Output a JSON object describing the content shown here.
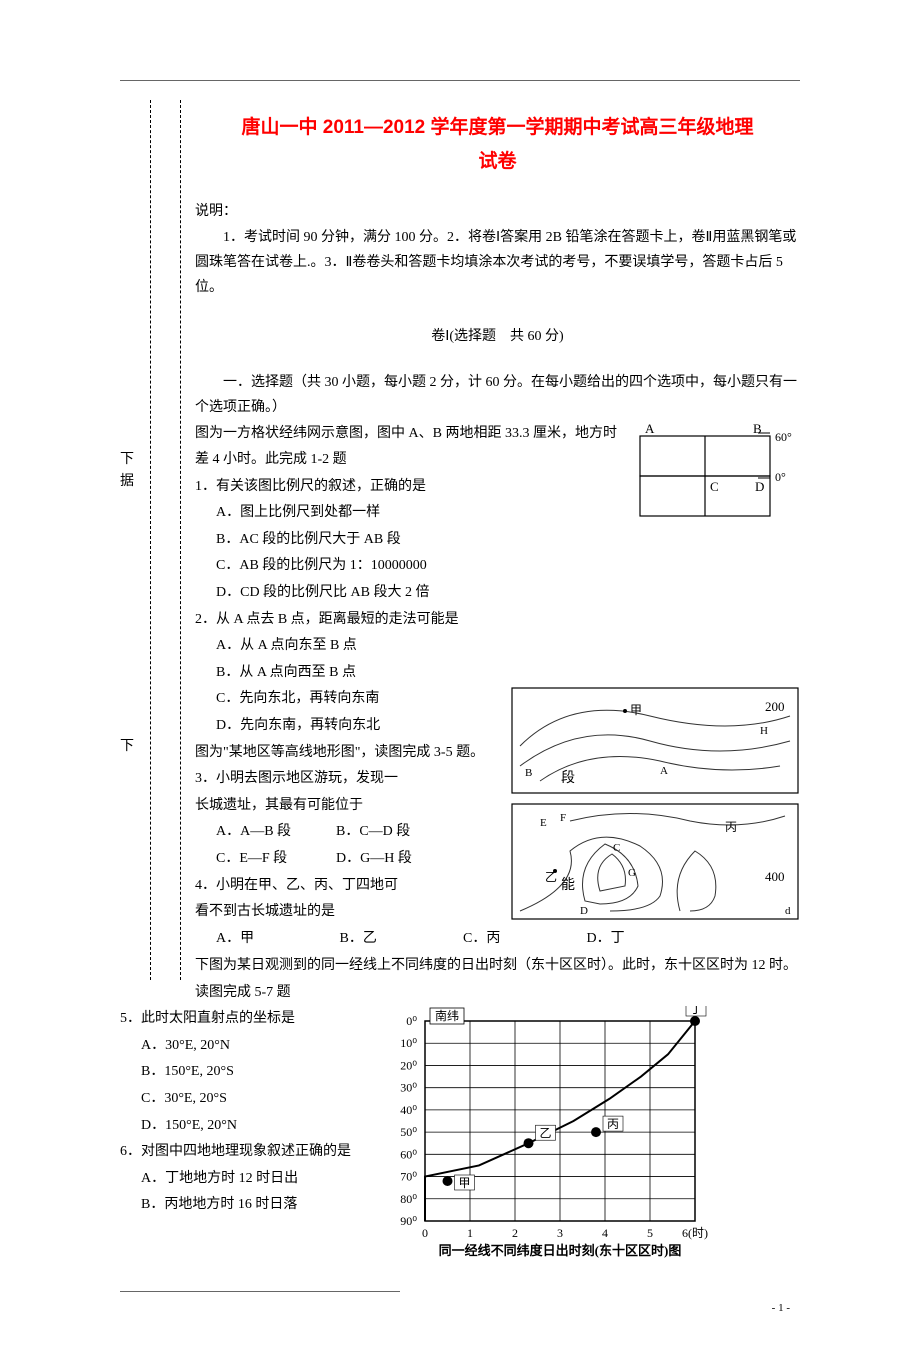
{
  "title_line1": "唐山一中 2011—2012 学年度第一学期期中考试高三年级地理",
  "title_line2": "试卷",
  "instr_label": "说明：",
  "instr_body": "1．考试时间 90 分钟，满分 100 分。2．将卷Ⅰ答案用 2B 铅笔涂在答题卡上，卷Ⅱ用蓝黑钢笔或圆珠笔答在试卷上.。3．Ⅱ卷卷头和答题卡均填涂本次考试的考号，不要误填学号，答题卡占后 5 位。",
  "section1": "卷Ⅰ(选择题　共 60 分)",
  "choice_intro": "一．选择题（共 30 小题，每小题 2 分，计 60 分。在每小题给出的四个选项中，每小题只有一个选项正确。）",
  "float_xia1": "下",
  "float_ju": "据",
  "float_xia2": "下",
  "q12_intro": "图为一方格状经纬网示意图，图中 A、B 两地相距 33.3 厘米，地方时差 4 小时。此完成 1-2 题",
  "q1": "1．有关该图比例尺的叙述，正确的是",
  "q1a": "A．图上比例尺到处都一样",
  "q1b": "B．AC 段的比例尺大于 AB 段",
  "q1c": "C．AB 段的比例尺为 1：10000000",
  "q1d": "D．CD 段的比例尺比 AB 段大 2 倍",
  "q2": "2．从 A 点去 B 点，距离最短的走法可能是",
  "q2a": "A．从 A 点向东至 B 点",
  "q2b": "B．从 A 点向西至 B 点",
  "q2c": "C．先向东北，再转向东南",
  "q2d": "D．先向东南，再转向东北",
  "q34_intro": "图为\"某地区等高线地形图\"，读图完成 3-5 题。",
  "q3": "3．小明去图示地区游玩，发现一",
  "q3_tail": "段",
  "q3_line2": "长城遗址，其最有可能位于",
  "q3a": "A．A—B 段",
  "q3b": "B．C—D 段",
  "q3c": "C．E—F 段",
  "q3d": "D．G—H 段",
  "q4": "4．小明在甲、乙、丙、丁四地可",
  "q4_tail": "能",
  "q4_line2": "看不到古长城遗址的是",
  "q4a": "A．甲",
  "q4b": "B．乙",
  "q4c": "C．丙",
  "q4d": "D．丁",
  "q57_intro": "下图为某日观测到的同一经线上不同纬度的日出时刻（东十区区时）。此时，东十区区时为 12 时。读图完成 5-7 题",
  "q5": "5．此时太阳直射点的坐标是",
  "q5a": "A．30°E, 20°N",
  "q5b": "B．150°E, 20°S",
  "q5c": "C．30°E, 20°S",
  "q5d": "D．150°E, 20°N",
  "q6": "6．对图中四地地理现象叙述正确的是",
  "q6a": "A．丁地地方时 12 时日出",
  "q6b": "B．丙地地方时 16 时日落",
  "page_num": "- 1 -",
  "fig1": {
    "labels": {
      "A": "A",
      "B": "B",
      "C": "C",
      "D": "D",
      "lat60": "60°",
      "lat0": "0°"
    },
    "line_color": "#000000",
    "bg": "#ffffff"
  },
  "fig2": {
    "labels": {
      "jia": "甲",
      "yi": "乙",
      "bing": "丙",
      "v200": "200",
      "v400": "400",
      "A": "A",
      "B": "B",
      "C": "C",
      "D": "D",
      "E": "E",
      "F": "F",
      "G": "G",
      "H": "H"
    },
    "contour_color": "#333333"
  },
  "fig3": {
    "y_label": "南纬",
    "y_ticks": [
      "0⁰",
      "10⁰",
      "20⁰",
      "30⁰",
      "40⁰",
      "50⁰",
      "60⁰",
      "70⁰",
      "80⁰",
      "90⁰"
    ],
    "x_ticks": [
      "0",
      "1",
      "2",
      "3",
      "4",
      "5",
      "6(时)"
    ],
    "points": {
      "jia": "甲",
      "yi": "乙",
      "bing": "丙",
      "ding": "丁"
    },
    "caption": "同一经线不同纬度日出时刻(东十区区时)图",
    "point_color": "#000000",
    "grid_color": "#000000",
    "curve_values": [
      {
        "lat": 90,
        "t": 0
      },
      {
        "lat": 70,
        "t": 0
      },
      {
        "lat": 65,
        "t": 1.2
      },
      {
        "lat": 55,
        "t": 2.3
      },
      {
        "lat": 45,
        "t": 3.3
      },
      {
        "lat": 35,
        "t": 4.1
      },
      {
        "lat": 25,
        "t": 4.8
      },
      {
        "lat": 15,
        "t": 5.4
      },
      {
        "lat": 5,
        "t": 5.8
      },
      {
        "lat": 0,
        "t": 6
      }
    ],
    "point_coords": {
      "jia": {
        "lat": 72,
        "t": 0.5
      },
      "yi": {
        "lat": 55,
        "t": 2.3
      },
      "bing": {
        "lat": 50,
        "t": 3.8
      },
      "ding": {
        "lat": 0,
        "t": 6
      }
    }
  }
}
